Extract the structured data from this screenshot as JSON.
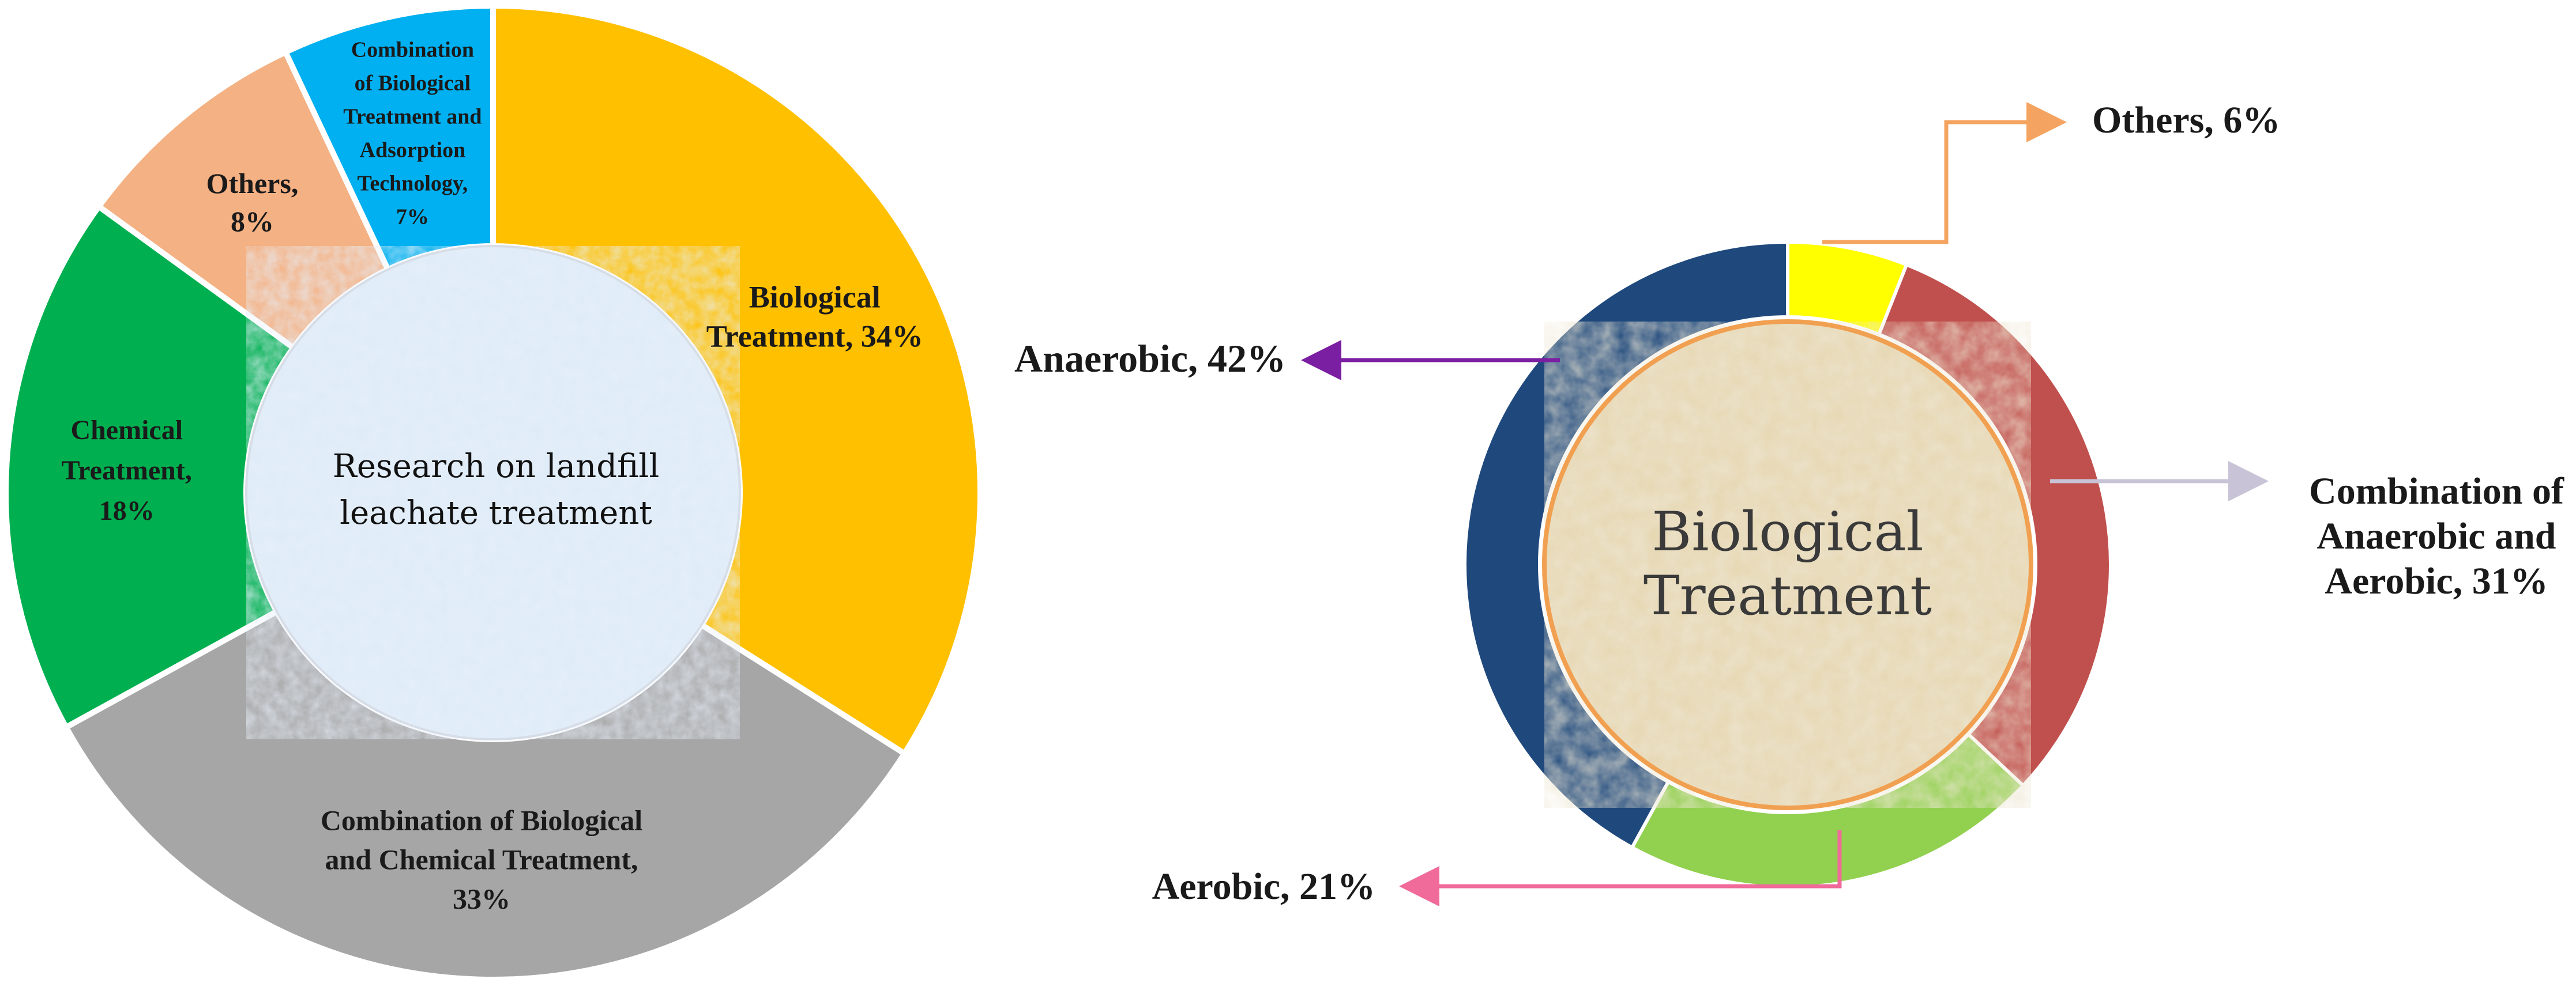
{
  "chart_data": [
    {
      "type": "pie",
      "center_label": "Research on landfill leachate treatment",
      "slices": [
        {
          "label": "Biological Treatment",
          "value": 34,
          "display": "Biological Treatment, 34%",
          "color": "#FFC000"
        },
        {
          "label": "Combination of Biological and Chemical Treatment",
          "value": 33,
          "display": "Combination of Biological and Chemical Treatment, 33%",
          "color": "#A6A6A6"
        },
        {
          "label": "Chemical Treatment",
          "value": 18,
          "display": "Chemical Treatment, 18%",
          "color": "#00B050"
        },
        {
          "label": "Others",
          "value": 8,
          "display": "Others, 8%",
          "color": "#F4B183"
        },
        {
          "label": "Combination of Biological Treatment and Adsorption Technology",
          "value": 7,
          "display": "Combination of Biological Treatment and Adsorption Technology, 7%",
          "color": "#00B0F0"
        }
      ],
      "hole_color": "#DEEBF7"
    },
    {
      "type": "pie",
      "center_label": "Biological Treatment",
      "slices": [
        {
          "label": "Others",
          "value": 6,
          "display": "Others, 6%",
          "color": "#FFFF00",
          "leader_color": "#F4A460"
        },
        {
          "label": "Combination of Anaerobic and Aerobic",
          "value": 31,
          "display": "Combination of Anaerobic and Aerobic, 31%",
          "color": "#C0504D",
          "leader_color": "#C8C3D6"
        },
        {
          "label": "Aerobic",
          "value": 21,
          "display": "Aerobic, 21%",
          "color": "#92D050",
          "leader_color": "#F06A9A"
        },
        {
          "label": "Anaerobic",
          "value": 42,
          "display": "Anaerobic, 42%",
          "color": "#1F497D",
          "leader_color": "#7B1FA2"
        }
      ],
      "hole_color": "#E6D6B0",
      "hole_border_color": "#F0A050"
    }
  ],
  "text": {
    "donut1": {
      "center_lines": [
        "Research on landfill",
        "leachate treatment"
      ],
      "labels": [
        [
          "Biological",
          "Treatment, 34%"
        ],
        [
          "Combination of Biological",
          "and Chemical Treatment,",
          "33%"
        ],
        [
          "Chemical",
          "Treatment,",
          "18%"
        ],
        [
          "Others,",
          "8%"
        ],
        [
          "Combination",
          "of Biological",
          "Treatment and",
          "Adsorption",
          "Technology,",
          "7%"
        ]
      ]
    },
    "donut2": {
      "center_lines": [
        "Biological",
        "Treatment"
      ],
      "labels": [
        [
          "Others, 6%"
        ],
        [
          "Combination of",
          "Anaerobic and",
          "Aerobic, 31%"
        ],
        [
          "Aerobic, 21%"
        ],
        [
          "Anaerobic, 42%"
        ]
      ]
    }
  }
}
